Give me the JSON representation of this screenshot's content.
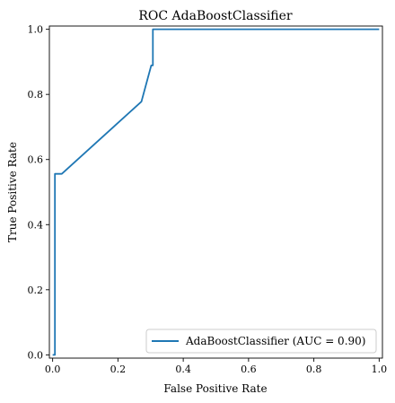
{
  "chart_data": {
    "type": "line",
    "title": "ROC AdaBoostClassifier",
    "xlabel": "False Positive Rate",
    "ylabel": "True Positive Rate",
    "xlim": [
      -0.01,
      1.01
    ],
    "ylim": [
      -0.01,
      1.01
    ],
    "xticks": [
      "0.0",
      "0.2",
      "0.4",
      "0.6",
      "0.8",
      "1.0"
    ],
    "yticks": [
      "0.0",
      "0.2",
      "0.4",
      "0.6",
      "0.8",
      "1.0"
    ],
    "grid": false,
    "legend_position": "lower-right",
    "series": [
      {
        "name": "AdaBoostClassifier (AUC = 0.90)",
        "color": "#1f77b4",
        "x": [
          0.0,
          0.0,
          0.007,
          0.007,
          0.028,
          0.272,
          0.302,
          0.302,
          0.307,
          0.307,
          1.0
        ],
        "y": [
          0.0,
          0.0,
          0.0,
          0.556,
          0.556,
          0.778,
          0.889,
          0.889,
          0.889,
          1.0,
          1.0
        ]
      }
    ]
  }
}
